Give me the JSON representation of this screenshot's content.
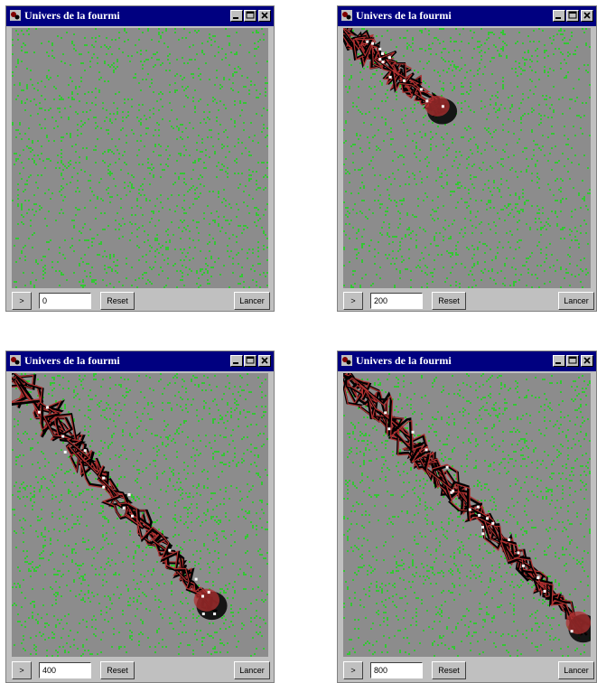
{
  "window_title": "Univers de la fourmi",
  "windows": [
    {
      "step_value": "0",
      "reset_label": "Reset",
      "run_label": "Lancer"
    },
    {
      "step_value": "200",
      "reset_label": "Reset",
      "run_label": "Lancer"
    },
    {
      "step_value": "400",
      "reset_label": "Reset",
      "run_label": "Lancer"
    },
    {
      "step_value": "800",
      "reset_label": "Reset",
      "run_label": "Lancer"
    }
  ],
  "step_button_label": ">",
  "colors": {
    "background": "#8c8c8c",
    "food": "#32c832",
    "trail": "#000000",
    "pheromone": "#b03030",
    "ant": "#ffffff",
    "titlebar": "#000080"
  },
  "icons": [
    "app-icon",
    "minimize-icon",
    "maximize-icon",
    "close-icon"
  ]
}
